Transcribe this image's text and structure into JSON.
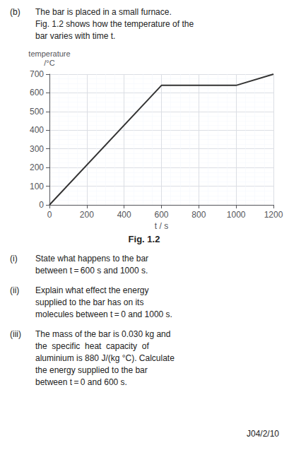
{
  "chart_data": {
    "type": "line",
    "xlabel": "t / s",
    "ylabel": "temperature\n/°C",
    "x": [
      0,
      600,
      1000,
      1200
    ],
    "values": [
      0,
      640,
      640,
      700
    ],
    "color": "#333333",
    "xlim": [
      0,
      1200
    ],
    "ylim": [
      0,
      700
    ],
    "xticks": [
      0,
      200,
      400,
      600,
      800,
      1000,
      1200
    ],
    "yticks": [
      0,
      100,
      200,
      300,
      400,
      500,
      600,
      700
    ],
    "grid": true,
    "annotations": [
      "(b)",
      "The bar is placed in a small furnace.\nFig. 1.2 shows how the temperature of the\nbar varies with time t.",
      "Fig. 1.2",
      "(i)",
      "State what happens to the bar\nbetween t = 600 s and 1000 s.",
      "(ii)",
      "Explain what effect the energy\nsupplied to the bar has on its\nmolecules between t = 0 and 1000 s.",
      "(iii)",
      "The mass of the bar is 0.030 kg and\nthe  specific  heat  capacity  of\naluminium is 880 J/(kg °C). Calculate\nthe energy supplied to the bar\nbetween t = 0 and 600 s.",
      "J04/2/10"
    ]
  }
}
